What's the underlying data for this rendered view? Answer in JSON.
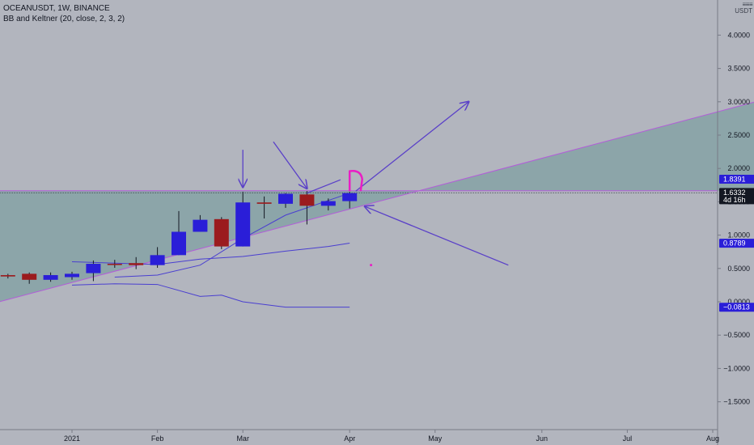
{
  "header": {
    "symbol_line": "OCEANUSDT, 1W, BINANCE",
    "indicator_line": "BB and Keltner (20, close, 2, 3, 2)"
  },
  "currency": {
    "line1": "USDT"
  },
  "colors": {
    "background": "#b2b5be",
    "bull": "#2a1ed8",
    "bear": "#9b1b1e",
    "band_line": "#4a3fd0",
    "triangle_fill": "#7fa0a2",
    "trendline": "#b35cd9",
    "drawing": "#5a40c8",
    "magenta": "#e91ec4",
    "axis_line": "#787b86"
  },
  "chart_data": {
    "type": "candlestick",
    "symbol": "OCEANUSDT",
    "interval": "1W",
    "exchange": "BINANCE",
    "y_ticks": [
      4.0,
      3.5,
      3.0,
      2.5,
      2.0,
      1.5,
      1.0,
      0.5,
      0.0,
      -0.5,
      -1.0,
      -1.5
    ],
    "y_tick_labels": [
      "4.0000",
      "3.5000",
      "3.0000",
      "2.5000",
      "2.0000",
      "1.5000",
      "1.0000",
      "0.5000",
      "0.0000",
      "−0.5000",
      "−1.0000",
      "−1.5000"
    ],
    "x_ticks": [
      {
        "label": "2021",
        "date": "2021-01-04"
      },
      {
        "label": "Feb",
        "date": "2021-02-01"
      },
      {
        "label": "Mar",
        "date": "2021-03-01"
      },
      {
        "label": "Apr",
        "date": "2021-04-05"
      },
      {
        "label": "May",
        "date": "2021-05-03"
      },
      {
        "label": "Jun",
        "date": "2021-06-07"
      },
      {
        "label": "Jul",
        "date": "2021-07-05"
      },
      {
        "label": "Aug",
        "date": "2021-08-02"
      }
    ],
    "candles": [
      {
        "date": "2020-12-07",
        "open": 0.41,
        "high": 0.49,
        "low": 0.38,
        "close": 0.4
      },
      {
        "date": "2020-12-14",
        "open": 0.4,
        "high": 0.42,
        "low": 0.35,
        "close": 0.38
      },
      {
        "date": "2020-12-21",
        "open": 0.42,
        "high": 0.44,
        "low": 0.27,
        "close": 0.33
      },
      {
        "date": "2020-12-28",
        "open": 0.33,
        "high": 0.44,
        "low": 0.3,
        "close": 0.4
      },
      {
        "date": "2021-01-04",
        "open": 0.37,
        "high": 0.45,
        "low": 0.33,
        "close": 0.42
      },
      {
        "date": "2021-01-11",
        "open": 0.43,
        "high": 0.62,
        "low": 0.31,
        "close": 0.57
      },
      {
        "date": "2021-01-18",
        "open": 0.57,
        "high": 0.63,
        "low": 0.51,
        "close": 0.56
      },
      {
        "date": "2021-01-25",
        "open": 0.58,
        "high": 0.67,
        "low": 0.49,
        "close": 0.55
      },
      {
        "date": "2021-02-01",
        "open": 0.55,
        "high": 0.82,
        "low": 0.51,
        "close": 0.7
      },
      {
        "date": "2021-02-08",
        "open": 0.7,
        "high": 1.36,
        "low": 0.7,
        "close": 1.05
      },
      {
        "date": "2021-02-15",
        "open": 1.05,
        "high": 1.3,
        "low": 1.05,
        "close": 1.23
      },
      {
        "date": "2021-02-22",
        "open": 1.24,
        "high": 1.27,
        "low": 0.79,
        "close": 0.83
      },
      {
        "date": "2021-03-01",
        "open": 0.83,
        "high": 1.65,
        "low": 0.83,
        "close": 1.49
      },
      {
        "date": "2021-03-08",
        "open": 1.49,
        "high": 1.58,
        "low": 1.25,
        "close": 1.47
      },
      {
        "date": "2021-03-15",
        "open": 1.47,
        "high": 1.63,
        "low": 1.41,
        "close": 1.62
      },
      {
        "date": "2021-03-22",
        "open": 1.61,
        "high": 1.66,
        "low": 1.16,
        "close": 1.44
      },
      {
        "date": "2021-03-29",
        "open": 1.44,
        "high": 1.55,
        "low": 1.37,
        "close": 1.51
      },
      {
        "date": "2021-04-05",
        "open": 1.51,
        "high": 1.65,
        "low": 1.4,
        "close": 1.63
      }
    ],
    "bands": {
      "upper": [
        {
          "date": "2021-01-04",
          "value": 0.6
        },
        {
          "date": "2021-02-01",
          "value": 0.56
        },
        {
          "date": "2021-02-15",
          "value": 0.64
        },
        {
          "date": "2021-03-01",
          "value": 0.68
        },
        {
          "date": "2021-03-15",
          "value": 0.76
        },
        {
          "date": "2021-03-29",
          "value": 0.83
        },
        {
          "date": "2021-04-05",
          "value": 0.88
        }
      ],
      "basis": [
        {
          "date": "2021-01-04",
          "value": 0.25
        },
        {
          "date": "2021-01-18",
          "value": 0.27
        },
        {
          "date": "2021-02-01",
          "value": 0.26
        },
        {
          "date": "2021-02-15",
          "value": 0.08
        },
        {
          "date": "2021-02-22",
          "value": 0.1
        },
        {
          "date": "2021-03-01",
          "value": 0.0
        },
        {
          "date": "2021-03-15",
          "value": -0.08
        },
        {
          "date": "2021-04-05",
          "value": -0.08
        }
      ],
      "mid": [
        {
          "date": "2021-01-18",
          "value": 0.37
        },
        {
          "date": "2021-02-01",
          "value": 0.4
        },
        {
          "date": "2021-02-15",
          "value": 0.55
        },
        {
          "date": "2021-03-01",
          "value": 0.95
        },
        {
          "date": "2021-03-15",
          "value": 1.3
        },
        {
          "date": "2021-04-05",
          "value": 1.63
        }
      ]
    },
    "price_tags": [
      {
        "label": "1.8391",
        "value": 1.8391,
        "style": "blue"
      },
      {
        "label": "1.6332",
        "value": 1.6332,
        "style": "dark",
        "sub": "4d 16h"
      },
      {
        "label": "0.8789",
        "value": 0.8789,
        "style": "blue"
      },
      {
        "label": "−0.0813",
        "value": -0.0813,
        "style": "blue"
      }
    ],
    "horizontal_lines": [
      {
        "value": 1.665,
        "style": "solid"
      },
      {
        "value": 1.6332,
        "style": "dotted"
      }
    ],
    "trendline": {
      "from": {
        "date": "2020-11-23",
        "value": -0.22
      },
      "to": {
        "date": "2021-08-16",
        "value": 3.0
      }
    },
    "triangle": {
      "left_date": "2020-11-23",
      "right_date": "2021-08-16",
      "top_value": 1.665
    },
    "annotations": {
      "down_arrows": [
        {
          "from": {
            "date": "2021-03-01",
            "value": 2.28
          },
          "to": {
            "date": "2021-03-01",
            "value": 1.72
          }
        },
        {
          "from": {
            "date": "2021-03-11",
            "value": 2.4
          },
          "to": {
            "date": "2021-03-22",
            "value": 1.7
          }
        },
        {
          "from": {
            "date": "2021-05-27",
            "value": 0.55
          },
          "to": {
            "date": "2021-04-10",
            "value": 1.43
          }
        }
      ],
      "up_arrow": {
        "from": {
          "date": "2021-04-07",
          "value": 1.66
        },
        "to": {
          "date": "2021-05-14",
          "value": 3.0
        }
      },
      "segment": {
        "from": {
          "date": "2021-03-22",
          "value": 1.63
        },
        "to": {
          "date": "2021-04-02",
          "value": 1.83
        }
      },
      "magenta_hook": [
        {
          "date": "2021-04-05",
          "value": 1.66
        },
        {
          "date": "2021-04-05",
          "value": 1.96
        },
        {
          "date": "2021-04-07",
          "value": 1.93
        },
        {
          "date": "2021-04-07",
          "value": 1.66
        }
      ],
      "magenta_dot": {
        "date": "2021-04-12",
        "value": 0.55
      }
    }
  }
}
